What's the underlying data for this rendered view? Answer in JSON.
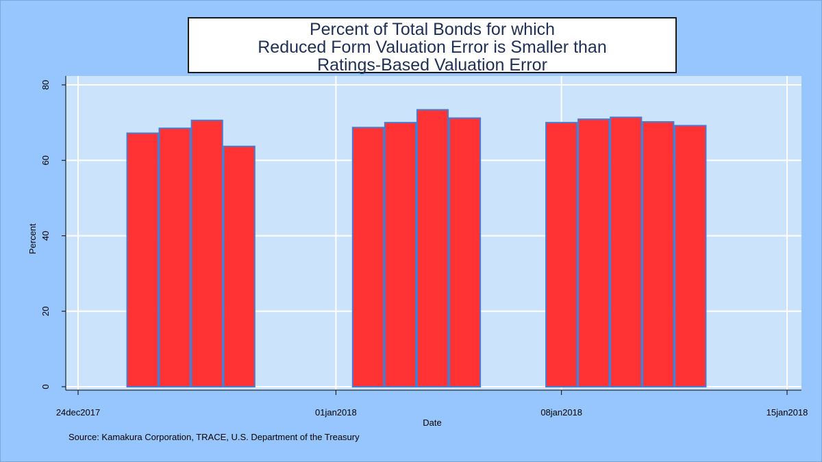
{
  "chart_data": {
    "type": "bar",
    "title_lines": [
      "Percent of Total Bonds for which",
      "Reduced Form Valuation Error is Smaller than",
      "Ratings-Based Valuation Error"
    ],
    "xlabel": "Date",
    "ylabel": "Percent",
    "x_ticks": [
      "24dec2017",
      "01jan2018",
      "08jan2018",
      "15jan2018"
    ],
    "y_ticks": [
      "0",
      "20",
      "40",
      "60",
      "80"
    ],
    "ylim": [
      0,
      80
    ],
    "xlim": [
      "24dec2017",
      "15jan2018"
    ],
    "grid": true,
    "bar_color": "#ff3333",
    "bar_edge_color": "#4a7bd0",
    "plot_bg": "#cce4fb",
    "outer_bg": "#97c6ff",
    "categories": [
      "26dec2017",
      "27dec2017",
      "28dec2017",
      "29dec2017",
      "02jan2018",
      "03jan2018",
      "04jan2018",
      "05jan2018",
      "08jan2018",
      "09jan2018",
      "10jan2018",
      "11jan2018",
      "12jan2018"
    ],
    "values": [
      67.2,
      68.5,
      70.6,
      63.7,
      68.7,
      70.0,
      73.4,
      71.2,
      70.0,
      70.9,
      71.4,
      70.2,
      69.2
    ]
  },
  "source": "Source: Kamakura Corporation, TRACE, U.S. Department of the Treasury"
}
